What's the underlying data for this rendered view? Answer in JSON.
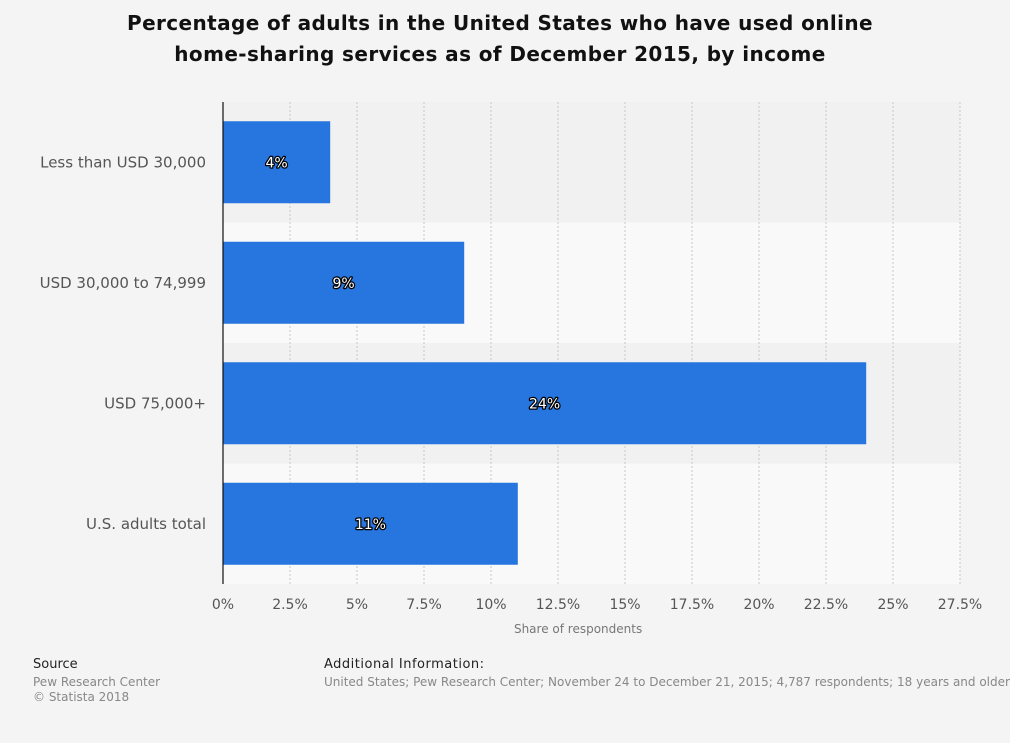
{
  "chart_data": {
    "type": "bar",
    "orientation": "horizontal",
    "title_lines": [
      "Percentage of adults in the United States who have used online",
      "home-sharing services as of December 2015, by income"
    ],
    "categories": [
      "Less than USD 30,000",
      "USD 30,000 to 74,999",
      "USD 75,000+",
      "U.S. adults total"
    ],
    "values": [
      4,
      9,
      24,
      11
    ],
    "value_labels": [
      "4%",
      "9%",
      "24%",
      "11%"
    ],
    "xlabel": "Share of respondents",
    "ylabel": "",
    "xlim": [
      0,
      27.5
    ],
    "x_ticks": [
      0,
      2.5,
      5,
      7.5,
      10,
      12.5,
      15,
      17.5,
      20,
      22.5,
      25,
      27.5
    ],
    "x_tick_labels": [
      "0%",
      "2.5%",
      "5%",
      "7.5%",
      "10%",
      "12.5%",
      "15%",
      "17.5%",
      "20%",
      "22.5%",
      "25%",
      "27.5%"
    ],
    "grid": "vertical dotted",
    "bar_color": "#2775de",
    "band_colors": [
      "#f1f1f1",
      "#f9f9f9"
    ]
  },
  "footer": {
    "source_label": "Source",
    "source_lines": [
      "Pew Research Center",
      "© Statista 2018"
    ],
    "additional_label": "Additional Information:",
    "additional_text": "United States; Pew Research Center; November 24 to December 21, 2015; 4,787 respondents; 18 years and older"
  }
}
